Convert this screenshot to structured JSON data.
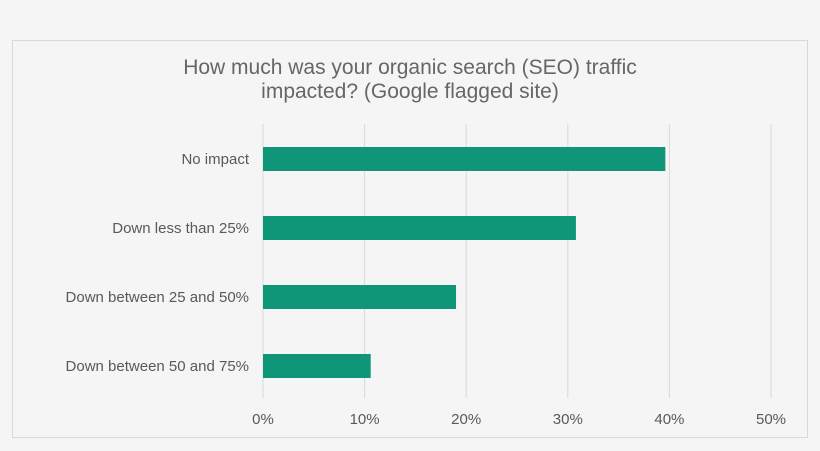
{
  "chart_data": {
    "type": "bar",
    "orientation": "horizontal",
    "title": "How much was your organic search (SEO) traffic\nimpacted? (Google flagged site)",
    "categories": [
      "No impact",
      "Down less than 25%",
      "Down between 25 and 50%",
      "Down between 50 and 75%"
    ],
    "values": [
      39.6,
      30.8,
      19.0,
      10.6
    ],
    "xlim": [
      0,
      50
    ],
    "x_ticks": [
      0,
      10,
      20,
      30,
      40,
      50
    ],
    "x_tick_labels": [
      "0%",
      "10%",
      "20%",
      "30%",
      "40%",
      "50%"
    ],
    "grid": true,
    "bar_color": "#0f9678",
    "grid_color": "#d9d9d9"
  }
}
